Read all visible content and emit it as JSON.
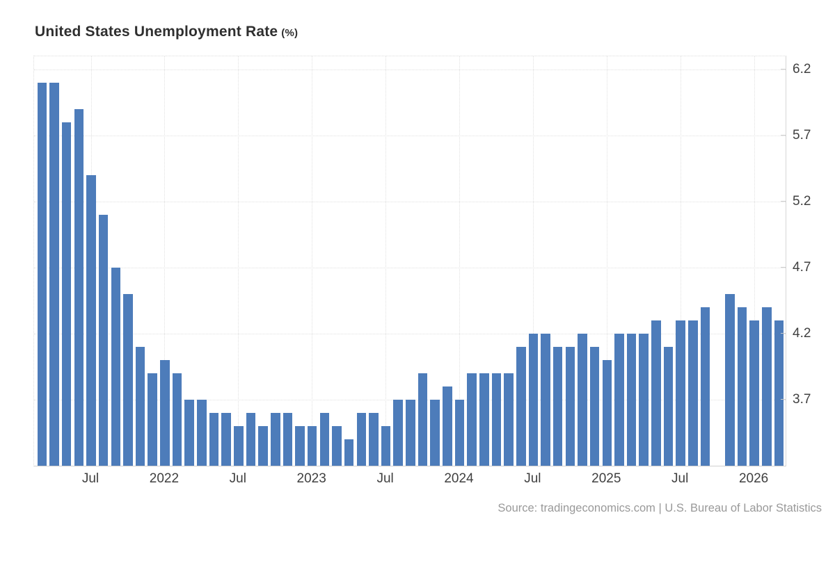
{
  "title": {
    "text": "United States Unemployment Rate",
    "unit": "(%)"
  },
  "source": "Source: tradingeconomics.com | U.S. Bureau of Labor Statistics",
  "colors": {
    "bar": "#4d7cba",
    "grid": "#e0e0e0",
    "plot_border": "#d6d6d6",
    "axis_line": "#cfcfcf",
    "tick": "#cccccc",
    "title_text": "#2f2f2f",
    "axis_text": "#404040",
    "source_text": "#999999",
    "background": "#ffffff"
  },
  "chart_data": {
    "type": "bar",
    "title": "United States Unemployment Rate (%)",
    "xlabel": "",
    "ylabel": "Unemployment Rate (%)",
    "x": [
      "2021-03",
      "2021-04",
      "2021-05",
      "2021-06",
      "2021-07",
      "2021-08",
      "2021-09",
      "2021-10",
      "2021-11",
      "2021-12",
      "2022-01",
      "2022-02",
      "2022-03",
      "2022-04",
      "2022-05",
      "2022-06",
      "2022-07",
      "2022-08",
      "2022-09",
      "2022-10",
      "2022-11",
      "2022-12",
      "2023-01",
      "2023-02",
      "2023-03",
      "2023-04",
      "2023-05",
      "2023-06",
      "2023-07",
      "2023-08",
      "2023-09",
      "2023-10",
      "2023-11",
      "2023-12",
      "2024-01",
      "2024-02",
      "2024-03",
      "2024-04",
      "2024-05",
      "2024-06",
      "2024-07",
      "2024-08",
      "2024-09",
      "2024-10",
      "2024-11",
      "2024-12",
      "2025-01",
      "2025-02",
      "2025-03",
      "2025-04",
      "2025-05",
      "2025-06",
      "2025-07",
      "2025-08",
      "2025-09",
      "2025-10",
      "2025-11",
      "2025-12",
      "2026-01",
      "2026-02",
      "2026-03"
    ],
    "values": [
      6.1,
      6.1,
      5.8,
      5.9,
      5.4,
      5.1,
      4.7,
      4.5,
      4.1,
      3.9,
      4.0,
      3.9,
      3.7,
      3.7,
      3.6,
      3.6,
      3.5,
      3.6,
      3.5,
      3.6,
      3.6,
      3.5,
      3.5,
      3.6,
      3.5,
      3.4,
      3.6,
      3.6,
      3.5,
      3.7,
      3.7,
      3.9,
      3.7,
      3.8,
      3.7,
      3.9,
      3.9,
      3.9,
      3.9,
      4.1,
      4.2,
      4.2,
      4.1,
      4.1,
      4.2,
      4.1,
      4.0,
      4.2,
      4.2,
      4.2,
      4.3,
      4.1,
      4.3,
      4.3,
      4.4,
      null,
      4.5,
      4.4,
      4.3,
      4.4,
      4.3
    ],
    "missing_months": [
      "2025-10"
    ],
    "y_ticks": [
      6.2,
      5.7,
      5.2,
      4.7,
      4.2,
      3.7
    ],
    "ylim": [
      3.2,
      6.3
    ],
    "x_tick_labels": [
      "Jul",
      "2022",
      "Jul",
      "2023",
      "Jul",
      "2024",
      "Jul",
      "2025",
      "Jul",
      "2026"
    ],
    "x_tick_month_indices": [
      4,
      10,
      16,
      22,
      28,
      34,
      40,
      46,
      52,
      58
    ],
    "grid": true,
    "legend": false
  }
}
